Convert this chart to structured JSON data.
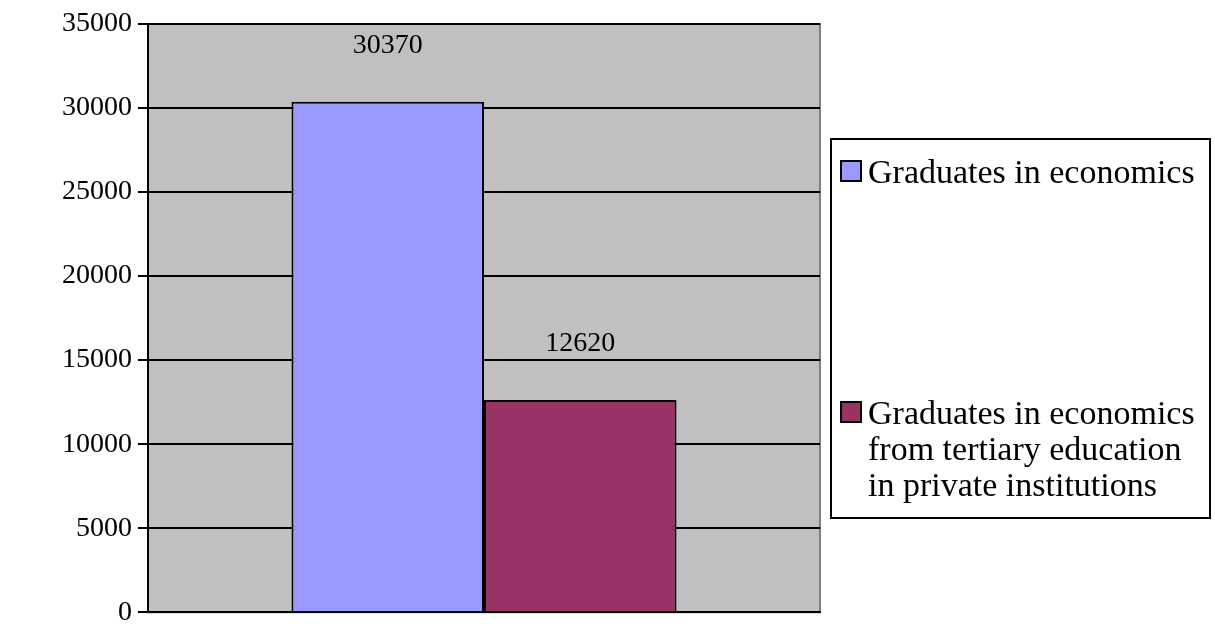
{
  "chart_data": {
    "type": "bar",
    "categories": [
      null
    ],
    "series": [
      {
        "name": "Graduates in economics",
        "color": "#9999ff",
        "values": [
          30370
        ]
      },
      {
        "name": "Graduates in economics from tertiary education in private institutions",
        "color": "#993366",
        "values": [
          12620
        ]
      }
    ],
    "ylim": [
      0,
      35000
    ],
    "yticks": [
      0,
      5000,
      10000,
      15000,
      20000,
      25000,
      30000,
      35000
    ],
    "grid": "y",
    "legend": "right",
    "data_labels": true
  }
}
